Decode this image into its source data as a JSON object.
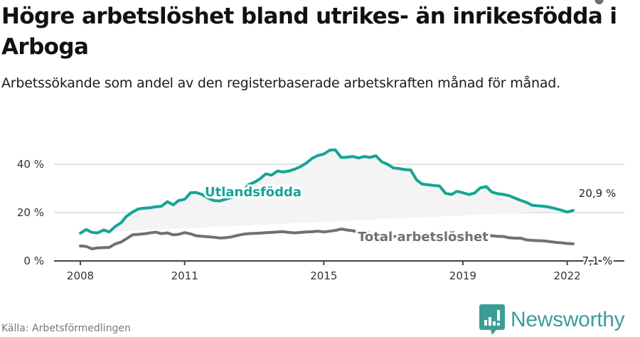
{
  "header": {
    "title": "Högre arbetslöshet bland utrikes- än inrikesfödda i Arboga",
    "subtitle": "Arbetssökande som andel av den registerbaserade arbetskraften månad för månad."
  },
  "footer": {
    "source": "Källa: Arbetsförmedlingen",
    "brand": "Newsworthy",
    "brand_icon": "bar-chart-speech-bubble-icon"
  },
  "colors": {
    "utlandsfodda": "#14a597",
    "total": "#707075",
    "band": "#f4f4f4",
    "grid": "#e2e2e2",
    "axis": "#444444",
    "brand": "#3d9d95"
  },
  "labels": {
    "utlandsfodda": "Utlandsfödda",
    "total": "Total arbetslöshet",
    "end_utlandsfodda": "20,9 %",
    "end_total": "7,1 %"
  },
  "axes": {
    "y_ticks": [
      "0 %",
      "20 %",
      "40 %"
    ],
    "x_ticks": [
      "2008",
      "2011",
      "2015",
      "2019",
      "2022"
    ]
  },
  "chart_data": {
    "type": "line",
    "title": "Högre arbetslöshet bland utrikes- än inrikesfödda i Arboga",
    "subtitle": "Arbetssökande som andel av den registerbaserade arbetskraften månad för månad.",
    "xlabel": "",
    "ylabel": "",
    "ylim": [
      0,
      45
    ],
    "xlim": [
      2007.6,
      2023.4
    ],
    "grid": true,
    "legend": "inline labels",
    "y_ticks": [
      0,
      20,
      40
    ],
    "x_ticks": [
      2008,
      2011,
      2015,
      2019,
      2022
    ],
    "source": "Källa: Arbetsförmedlingen",
    "x": [
      2008.0,
      2008.17,
      2008.33,
      2008.5,
      2008.67,
      2008.83,
      2009.0,
      2009.17,
      2009.33,
      2009.5,
      2009.67,
      2009.83,
      2010.0,
      2010.17,
      2010.33,
      2010.5,
      2010.67,
      2010.83,
      2011.0,
      2011.17,
      2011.33,
      2011.5,
      2011.67,
      2011.83,
      2012.0,
      2012.17,
      2012.33,
      2012.5,
      2012.67,
      2012.83,
      2013.0,
      2013.17,
      2013.33,
      2013.5,
      2013.67,
      2013.83,
      2014.0,
      2014.17,
      2014.33,
      2014.5,
      2014.67,
      2014.83,
      2015.0,
      2015.17,
      2015.33,
      2015.5,
      2015.67,
      2015.83,
      2016.0,
      2016.17,
      2016.33,
      2016.5,
      2016.67,
      2016.83,
      2017.0,
      2017.17,
      2017.33,
      2017.5,
      2017.67,
      2017.83,
      2018.0,
      2018.17,
      2018.33,
      2018.5,
      2018.67,
      2018.83,
      2019.0,
      2019.17,
      2019.33,
      2019.5,
      2019.67,
      2019.83,
      2020.0,
      2020.17,
      2020.33,
      2020.5,
      2020.67,
      2020.83,
      2021.0,
      2021.17,
      2021.33,
      2021.5,
      2021.67,
      2021.83,
      2022.0,
      2022.17,
      2022.33,
      2022.5,
      2022.67,
      2022.92
    ],
    "series": [
      {
        "name": "Utlandsfödda",
        "color": "#14a597",
        "end_label": "20,9 %",
        "values": [
          11.5,
          13.0,
          11.8,
          11.6,
          12.8,
          12.0,
          14.2,
          15.8,
          18.5,
          20.2,
          21.5,
          21.8,
          22.0,
          22.4,
          22.6,
          24.5,
          23.2,
          25.0,
          25.5,
          28.2,
          28.3,
          27.5,
          26.0,
          25.0,
          24.8,
          25.5,
          26.2,
          26.8,
          28.5,
          31.5,
          32.5,
          34.0,
          36.0,
          35.5,
          37.2,
          36.8,
          37.2,
          38.0,
          39.0,
          40.5,
          42.5,
          43.6,
          44.2,
          45.8,
          46.0,
          42.8,
          42.9,
          43.2,
          42.6,
          43.2,
          42.8,
          43.5,
          41.0,
          40.0,
          38.5,
          38.2,
          37.8,
          37.6,
          33.5,
          31.8,
          31.5,
          31.2,
          31.0,
          28.0,
          27.5,
          28.8,
          28.2,
          27.5,
          28.0,
          30.2,
          30.8,
          28.5,
          27.8,
          27.5,
          27.0,
          26.0,
          25.0,
          24.2,
          23.0,
          22.8,
          22.6,
          22.2,
          21.6,
          21.0,
          20.2,
          20.9
        ]
      },
      {
        "name": "Total arbetslöshet",
        "color": "#707075",
        "end_label": "7,1 %",
        "values": [
          6.2,
          6.0,
          5.0,
          5.4,
          5.5,
          5.6,
          7.0,
          7.8,
          9.2,
          10.8,
          11.0,
          11.2,
          11.6,
          11.9,
          11.3,
          11.6,
          10.8,
          11.0,
          11.7,
          11.2,
          10.4,
          10.2,
          10.0,
          9.8,
          9.5,
          9.6,
          9.9,
          10.5,
          11.0,
          11.3,
          11.4,
          11.5,
          11.7,
          11.8,
          12.0,
          12.1,
          11.8,
          11.6,
          11.8,
          12.0,
          12.1,
          12.3,
          12.0,
          12.3,
          12.6,
          13.2,
          12.8,
          12.5,
          12.0,
          11.8,
          11.5,
          11.0,
          10.8,
          10.5,
          10.2,
          10.0,
          9.8,
          9.6,
          9.5,
          9.4,
          9.3,
          9.2,
          9.1,
          9.0,
          9.0,
          9.1,
          9.0,
          9.3,
          9.6,
          10.5,
          11.0,
          10.4,
          10.2,
          10.1,
          9.6,
          9.4,
          9.4,
          8.7,
          8.5,
          8.4,
          8.3,
          8.0,
          7.7,
          7.5,
          7.2,
          7.1
        ]
      }
    ]
  }
}
